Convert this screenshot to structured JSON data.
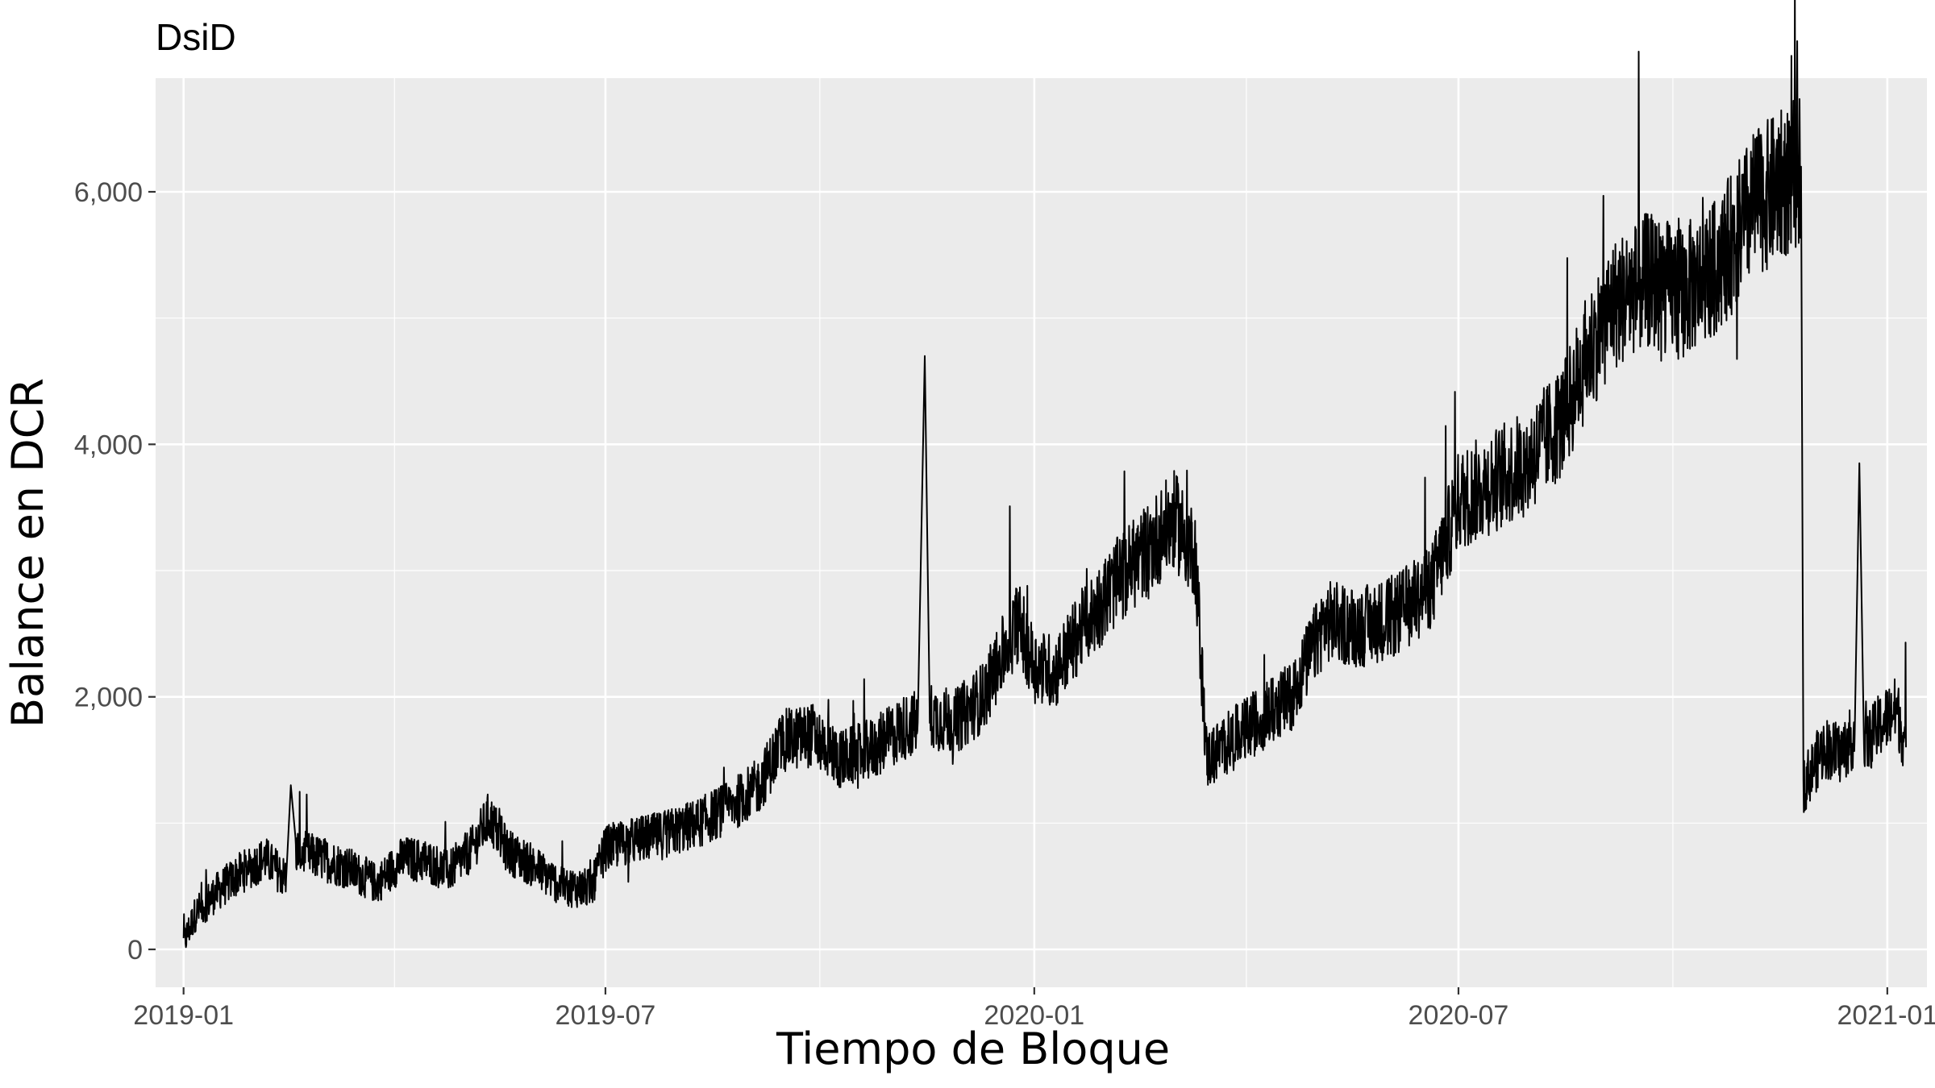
{
  "chart_data": {
    "type": "line",
    "title": "DsiD",
    "xlabel": "Tiempo de Bloque",
    "ylabel": "Balance en DCR",
    "x_tick_labels": [
      "2019-01",
      "2019-07",
      "2020-01",
      "2020-07",
      "2021-01"
    ],
    "y_tick_labels": [
      "0",
      "2,000",
      "4,000",
      "6,000"
    ],
    "xlim": [
      "2018-12-20",
      "2021-01-18"
    ],
    "ylim": [
      -300,
      6900
    ],
    "grid": true,
    "legend": "none",
    "series": [
      {
        "color": "#000000",
        "values": [
          [
            "2019-01-01",
            50
          ],
          [
            "2019-01-06",
            280
          ],
          [
            "2019-01-15",
            450
          ],
          [
            "2019-01-25",
            600
          ],
          [
            "2019-02-05",
            720
          ],
          [
            "2019-02-14",
            560
          ],
          [
            "2019-02-16",
            1300
          ],
          [
            "2019-02-18",
            780
          ],
          [
            "2019-03-01",
            720
          ],
          [
            "2019-03-12",
            650
          ],
          [
            "2019-03-25",
            520
          ],
          [
            "2019-04-05",
            720
          ],
          [
            "2019-04-15",
            700
          ],
          [
            "2019-04-25",
            620
          ],
          [
            "2019-05-05",
            800
          ],
          [
            "2019-05-12",
            1050
          ],
          [
            "2019-05-20",
            780
          ],
          [
            "2019-06-01",
            650
          ],
          [
            "2019-06-12",
            500
          ],
          [
            "2019-06-25",
            480
          ],
          [
            "2019-07-01",
            800
          ],
          [
            "2019-07-10",
            850
          ],
          [
            "2019-07-25",
            900
          ],
          [
            "2019-08-10",
            1000
          ],
          [
            "2019-08-25",
            1150
          ],
          [
            "2019-09-05",
            1300
          ],
          [
            "2019-09-15",
            1650
          ],
          [
            "2019-09-28",
            1700
          ],
          [
            "2019-10-10",
            1500
          ],
          [
            "2019-10-25",
            1600
          ],
          [
            "2019-11-05",
            1750
          ],
          [
            "2019-11-12",
            1800
          ],
          [
            "2019-11-15",
            4700
          ],
          [
            "2019-11-17",
            1850
          ],
          [
            "2019-11-28",
            1800
          ],
          [
            "2019-12-10",
            2000
          ],
          [
            "2019-12-25",
            2600
          ],
          [
            "2020-01-01",
            2250
          ],
          [
            "2020-01-10",
            2200
          ],
          [
            "2020-01-20",
            2500
          ],
          [
            "2020-02-05",
            2900
          ],
          [
            "2020-02-20",
            3200
          ],
          [
            "2020-03-01",
            3400
          ],
          [
            "2020-03-10",
            3150
          ],
          [
            "2020-03-15",
            1500
          ],
          [
            "2020-03-25",
            1650
          ],
          [
            "2020-04-05",
            1800
          ],
          [
            "2020-04-20",
            2000
          ],
          [
            "2020-05-05",
            2600
          ],
          [
            "2020-05-20",
            2550
          ],
          [
            "2020-06-05",
            2650
          ],
          [
            "2020-06-20",
            2900
          ],
          [
            "2020-07-01",
            3550
          ],
          [
            "2020-07-15",
            3700
          ],
          [
            "2020-07-30",
            3850
          ],
          [
            "2020-08-15",
            4200
          ],
          [
            "2020-08-25",
            4700
          ],
          [
            "2020-09-05",
            5100
          ],
          [
            "2020-09-20",
            5300
          ],
          [
            "2020-10-05",
            5200
          ],
          [
            "2020-10-20",
            5400
          ],
          [
            "2020-11-05",
            5900
          ],
          [
            "2020-11-20",
            6100
          ],
          [
            "2020-11-25",
            6200
          ],
          [
            "2020-11-26",
            1300
          ],
          [
            "2020-12-05",
            1600
          ],
          [
            "2020-12-12",
            1550
          ],
          [
            "2020-12-18",
            1700
          ],
          [
            "2020-12-20",
            3850
          ],
          [
            "2020-12-22",
            1600
          ],
          [
            "2020-12-30",
            1800
          ],
          [
            "2021-01-05",
            1900
          ],
          [
            "2021-01-09",
            1600
          ]
        ]
      }
    ]
  }
}
